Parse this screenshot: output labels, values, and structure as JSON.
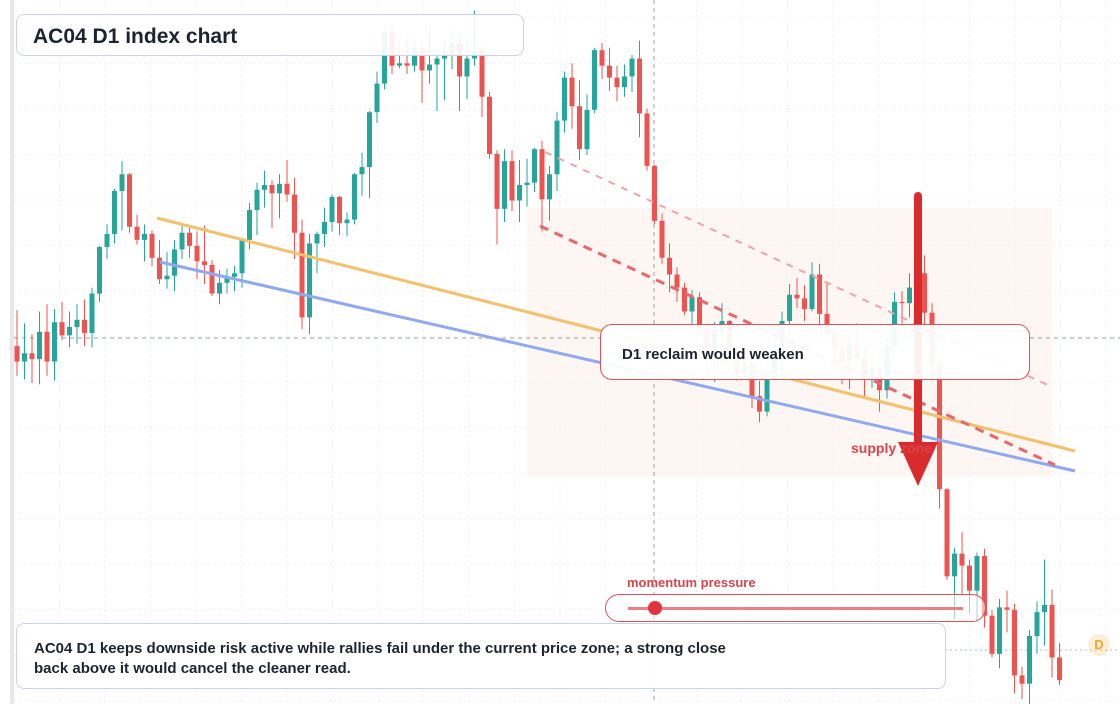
{
  "title": "AC04 D1 index chart",
  "callout": "D1 reclaim would weaken",
  "zone_label": "supply zone",
  "momentum": {
    "label": "momentum pressure",
    "value": 0.08
  },
  "note": "AC04 D1 keeps downside risk active while rallies fail under the current price zone; a strong close back above it would cancel the cleaner read.",
  "tag": "D",
  "colors": {
    "up": "#26a69a",
    "down": "#ef5350",
    "orange_line": "#f5c06b",
    "blue_line": "#8fa9f0",
    "channel": "#e8676e",
    "arrow": "#d92b2b",
    "accent": "#d9434a"
  },
  "chart_data": {
    "type": "candlestick",
    "timeframe": "D1",
    "price_range": [
      0,
      100
    ],
    "candles_count": 140,
    "candles": [
      [
        76.0,
        79.0,
        73.5,
        74.7
      ],
      [
        74.7,
        77.9,
        73.2,
        75.4
      ],
      [
        75.4,
        77.0,
        72.9,
        74.9
      ],
      [
        74.9,
        78.9,
        72.8,
        77.2
      ],
      [
        77.2,
        79.5,
        73.5,
        74.7
      ],
      [
        74.7,
        79.1,
        73.1,
        78.0
      ],
      [
        78.0,
        79.7,
        76.5,
        76.9
      ],
      [
        76.9,
        78.9,
        75.9,
        77.6
      ],
      [
        77.6,
        79.5,
        76.2,
        78.2
      ],
      [
        78.2,
        79.9,
        76.0,
        77.1
      ],
      [
        77.1,
        80.9,
        75.9,
        80.4
      ],
      [
        80.4,
        84.4,
        79.7,
        84.3
      ],
      [
        84.3,
        86.2,
        83.3,
        85.4
      ],
      [
        85.4,
        89.2,
        84.6,
        89.0
      ],
      [
        89.0,
        91.5,
        85.7,
        90.4
      ],
      [
        90.4,
        90.5,
        85.5,
        86.0
      ],
      [
        86.0,
        87.0,
        84.5,
        84.9
      ],
      [
        84.9,
        86.2,
        83.1,
        85.4
      ],
      [
        85.4,
        85.7,
        82.7,
        83.4
      ],
      [
        83.4,
        84.9,
        81.2,
        81.6
      ],
      [
        81.6,
        83.9,
        80.8,
        81.9
      ],
      [
        81.9,
        84.9,
        80.6,
        84.1
      ],
      [
        84.1,
        86.3,
        83.3,
        85.5
      ],
      [
        85.5,
        86.1,
        83.4,
        84.4
      ],
      [
        84.4,
        85.6,
        81.6,
        83.1
      ],
      [
        83.1,
        86.1,
        81.2,
        82.8
      ],
      [
        82.8,
        83.2,
        80.2,
        80.4
      ],
      [
        80.4,
        82.4,
        79.5,
        81.3
      ],
      [
        81.3,
        82.5,
        80.4,
        81.8
      ],
      [
        81.8,
        82.7,
        80.6,
        82.1
      ],
      [
        82.1,
        85.0,
        80.9,
        84.9
      ],
      [
        84.9,
        88.0,
        84.1,
        87.4
      ],
      [
        87.4,
        89.7,
        85.3,
        89.1
      ],
      [
        89.1,
        90.7,
        87.6,
        89.5
      ],
      [
        89.5,
        89.9,
        85.9,
        88.8
      ],
      [
        88.8,
        90.4,
        86.7,
        89.6
      ],
      [
        89.6,
        91.6,
        88.1,
        88.7
      ],
      [
        88.7,
        90.1,
        83.3,
        85.5
      ],
      [
        85.5,
        86.6,
        77.4,
        78.4
      ],
      [
        78.4,
        85.4,
        77.0,
        84.6
      ],
      [
        84.6,
        85.6,
        82.1,
        85.4
      ],
      [
        85.4,
        87.6,
        84.3,
        86.4
      ],
      [
        86.4,
        88.7,
        85.6,
        88.5
      ],
      [
        88.5,
        88.6,
        85.3,
        86.3
      ],
      [
        86.3,
        87.2,
        85.2,
        86.6
      ],
      [
        86.6,
        90.5,
        86.2,
        90.4
      ],
      [
        90.4,
        92.2,
        88.6,
        91.0
      ],
      [
        91.0,
        95.7,
        88.4,
        95.6
      ],
      [
        95.6,
        99.0,
        94.7,
        98.0
      ],
      [
        98.0,
        102.5,
        97.5,
        102.3
      ],
      [
        102.3,
        103.0,
        98.8,
        99.5
      ],
      [
        99.5,
        101.7,
        99.3,
        99.7
      ],
      [
        99.7,
        101.9,
        98.8,
        99.5
      ],
      [
        99.5,
        101.8,
        99.0,
        101.0
      ],
      [
        101.0,
        101.7,
        96.4,
        99.1
      ],
      [
        99.1,
        102.8,
        98.0,
        99.6
      ],
      [
        99.6,
        101.0,
        95.7,
        100.1
      ],
      [
        100.1,
        101.5,
        96.6,
        100.4
      ],
      [
        100.4,
        102.5,
        99.2,
        101.4
      ],
      [
        101.4,
        102.0,
        95.7,
        98.6
      ],
      [
        98.6,
        101.8,
        96.7,
        100.1
      ],
      [
        100.1,
        104.1,
        99.5,
        100.7
      ],
      [
        100.7,
        101.2,
        95.2,
        96.9
      ],
      [
        96.9,
        97.3,
        91.7,
        92.1
      ],
      [
        92.1,
        92.4,
        84.5,
        87.5
      ],
      [
        87.5,
        92.5,
        86.4,
        91.5
      ],
      [
        91.5,
        92.4,
        87.3,
        88.2
      ],
      [
        88.2,
        91.6,
        86.4,
        89.5
      ],
      [
        89.5,
        91.7,
        87.7,
        89.7
      ],
      [
        89.7,
        92.6,
        88.9,
        92.5
      ],
      [
        92.5,
        93.2,
        85.6,
        88.3
      ],
      [
        88.3,
        91.1,
        86.5,
        90.4
      ],
      [
        90.4,
        95.6,
        89.0,
        94.9
      ],
      [
        94.9,
        99.0,
        93.9,
        98.5
      ],
      [
        98.5,
        99.7,
        94.2,
        96.1
      ],
      [
        96.1,
        98.3,
        91.6,
        92.5
      ],
      [
        92.5,
        97.1,
        92.0,
        95.8
      ],
      [
        95.8,
        101.0,
        95.5,
        100.8
      ],
      [
        100.8,
        101.4,
        98.4,
        99.5
      ],
      [
        99.5,
        101.0,
        97.4,
        98.5
      ],
      [
        98.5,
        99.5,
        96.5,
        97.7
      ],
      [
        97.7,
        99.6,
        96.9,
        98.6
      ],
      [
        98.6,
        100.4,
        97.3,
        100.1
      ],
      [
        100.1,
        101.6,
        93.5,
        95.5
      ],
      [
        95.5,
        95.9,
        90.7,
        91.1
      ],
      [
        91.1,
        91.2,
        86.2,
        86.5
      ],
      [
        86.5,
        87.1,
        82.9,
        83.4
      ],
      [
        83.4,
        84.6,
        80.5,
        82.0
      ],
      [
        82.0,
        82.6,
        79.7,
        80.9
      ],
      [
        80.9,
        81.3,
        78.6,
        78.9
      ],
      [
        78.9,
        80.7,
        77.7,
        80.1
      ],
      [
        80.1,
        80.5,
        76.8,
        77.5
      ],
      [
        77.5,
        77.6,
        73.8,
        74.9
      ],
      [
        74.9,
        78.0,
        73.0,
        77.4
      ],
      [
        77.4,
        79.6,
        76.5,
        78.1
      ],
      [
        78.1,
        78.2,
        74.4,
        75.0
      ],
      [
        75.0,
        75.7,
        73.1,
        73.7
      ],
      [
        73.7,
        76.1,
        73.4,
        74.5
      ],
      [
        74.5,
        74.8,
        70.8,
        71.8
      ],
      [
        71.8,
        73.1,
        69.6,
        70.5
      ],
      [
        70.5,
        74.4,
        70.1,
        73.6
      ],
      [
        73.6,
        76.5,
        73.2,
        75.0
      ],
      [
        75.0,
        78.9,
        73.8,
        78.1
      ],
      [
        78.1,
        81.2,
        77.1,
        80.3
      ],
      [
        80.3,
        81.7,
        79.2,
        80.0
      ],
      [
        80.0,
        81.1,
        78.1,
        79.1
      ],
      [
        79.1,
        83.0,
        78.9,
        82.0
      ],
      [
        82.0,
        82.9,
        77.7,
        78.7
      ],
      [
        78.7,
        81.3,
        76.8,
        77.1
      ],
      [
        77.1,
        77.8,
        74.8,
        75.7
      ],
      [
        75.7,
        76.9,
        72.8,
        74.7
      ],
      [
        74.7,
        77.0,
        72.4,
        76.1
      ],
      [
        76.1,
        77.9,
        74.6,
        75.0
      ],
      [
        75.0,
        76.0,
        71.7,
        73.2
      ],
      [
        73.2,
        74.5,
        72.5,
        74.2
      ],
      [
        74.2,
        74.5,
        70.5,
        72.3
      ],
      [
        72.3,
        76.7,
        71.6,
        76.0
      ],
      [
        76.0,
        80.5,
        75.1,
        79.7
      ],
      [
        79.7,
        80.6,
        77.9,
        79.6
      ],
      [
        79.6,
        82.1,
        78.4,
        80.9
      ],
      [
        80.9,
        83.3,
        80.3,
        82.1
      ],
      [
        82.1,
        83.6,
        77.1,
        78.8
      ],
      [
        78.8,
        79.6,
        73.5,
        74.4
      ],
      [
        74.4,
        75.1,
        62.4,
        64.0
      ],
      [
        64.0,
        64.1,
        56.4,
        56.7
      ],
      [
        56.7,
        59.1,
        53.1,
        58.6
      ],
      [
        58.6,
        60.4,
        55.1,
        57.6
      ],
      [
        57.6,
        58.1,
        53.6,
        55.5
      ],
      [
        55.5,
        58.7,
        52.9,
        58.4
      ],
      [
        58.4,
        59.0,
        52.4,
        53.4
      ],
      [
        53.4,
        53.9,
        49.9,
        50.2
      ],
      [
        50.2,
        54.8,
        49.0,
        54.1
      ],
      [
        54.1,
        55.5,
        52.0,
        53.9
      ],
      [
        53.9,
        54.4,
        46.9,
        48.4
      ],
      [
        48.4,
        49.1,
        46.4,
        47.7
      ],
      [
        47.7,
        52.2,
        46.0,
        51.7
      ],
      [
        51.7,
        54.6,
        50.2,
        53.7
      ],
      [
        53.7,
        58.1,
        50.9,
        54.3
      ],
      [
        54.3,
        55.6,
        48.2,
        49.9
      ],
      [
        49.9,
        51.1,
        47.6,
        48.0
      ]
    ],
    "overlay_lines": [
      {
        "name": "orange trendline",
        "from": [
          6,
          80.0
        ],
        "to": [
          139,
          55.0
        ]
      },
      {
        "name": "blue trendline",
        "from": [
          6,
          74.5
        ],
        "to": [
          139,
          50.0
        ]
      }
    ],
    "annotations": [
      "D1 reclaim would weaken",
      "supply zone"
    ]
  }
}
